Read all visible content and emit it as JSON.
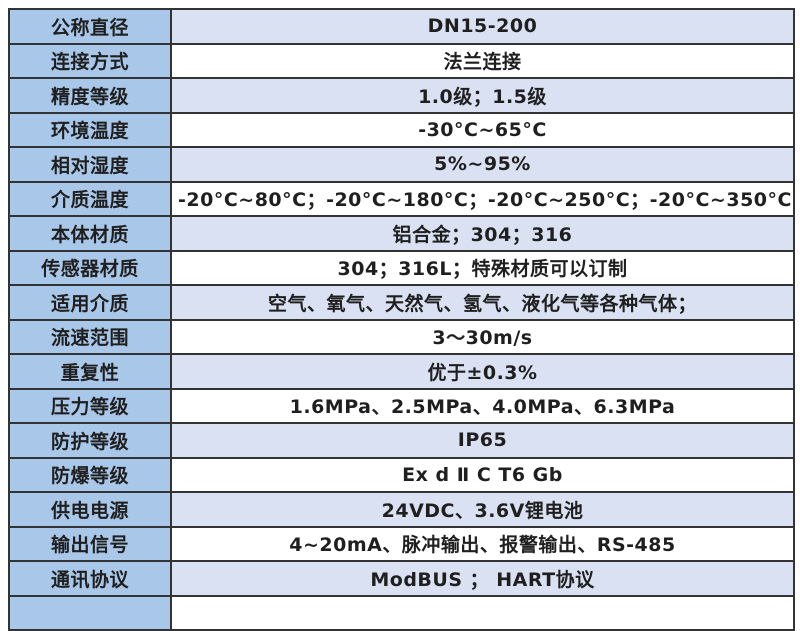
{
  "page": {
    "background": "#ffffff"
  },
  "spec_table": {
    "rows": [
      {
        "label": "公称直径",
        "value": "DN15-200"
      },
      {
        "label": "连接方式",
        "value": "法兰连接"
      },
      {
        "label": "精度等级",
        "value": "1.0级；1.5级"
      },
      {
        "label": "环境温度",
        "value": "-30°C~65°C"
      },
      {
        "label": "相对湿度",
        "value": "5%~95%"
      },
      {
        "label": "介质温度",
        "value": "-20°C~80°C；-20°C~180°C；-20°C~250°C；-20°C~350°C"
      },
      {
        "label": "本体材质",
        "value": "铝合金；304；316"
      },
      {
        "label": "传感器材质",
        "value": "304；316L；特殊材质可以订制"
      },
      {
        "label": "适用介质",
        "value": "空气、氧气、天然气、氢气、液化气等各种气体；"
      },
      {
        "label": "流速范围",
        "value": "3～30m/s"
      },
      {
        "label": "重复性",
        "value": "优于±0.3%"
      },
      {
        "label": "压力等级",
        "value": "1.6MPa、2.5MPa、4.0MPa、6.3MPa"
      },
      {
        "label": "防护等级",
        "value": "IP65"
      },
      {
        "label": "防爆等级",
        "value": "Ex d Ⅱ C T6 Gb"
      },
      {
        "label": "供电电源",
        "value": "24VDC、3.6V锂电池"
      },
      {
        "label": "输出信号",
        "value": "4~20mA、脉冲输出、报警输出、RS-485"
      },
      {
        "label": "通讯协议",
        "value": "ModBUS ； HART协议"
      },
      {
        "label": "",
        "value": ""
      }
    ],
    "colors": {
      "label_cell_bg": "#a9c7e8",
      "value_cell_bg_alt": "#d9e1f2",
      "value_cell_bg": "#ffffff",
      "border": "#333333",
      "text": "#1f1f1f"
    }
  }
}
